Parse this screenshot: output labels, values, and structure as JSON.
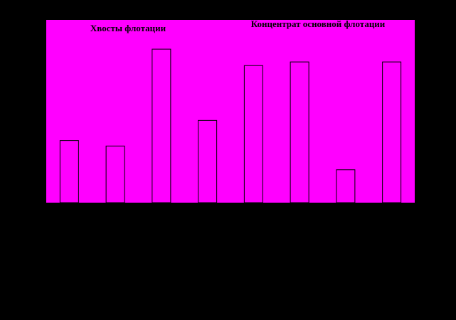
{
  "chart_data": {
    "type": "bar",
    "categories": [
      null,
      null,
      null,
      null,
      null,
      null,
      null,
      null
    ],
    "values": [
      34,
      31,
      84,
      45,
      75,
      77,
      18,
      77
    ],
    "color": "#ff00ff",
    "background": "#ff00ff",
    "ylim": [
      0,
      100
    ],
    "annotations": [
      "Хвосты флотации",
      "Концентрат основной флотации"
    ]
  }
}
